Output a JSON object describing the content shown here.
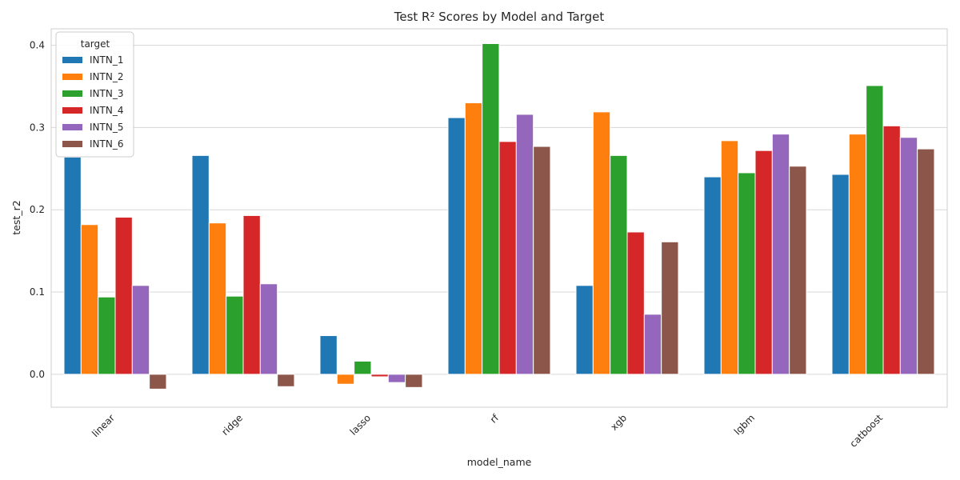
{
  "chart_data": {
    "type": "bar",
    "title": "Test R² Scores by Model and Target",
    "xlabel": "model_name",
    "ylabel": "test_r2",
    "categories": [
      "linear",
      "ridge",
      "lasso",
      "rf",
      "xgb",
      "lgbm",
      "catboost"
    ],
    "ylim": [
      -0.04,
      0.42
    ],
    "yticks": [
      0.0,
      0.1,
      0.2,
      0.3,
      0.4
    ],
    "ytick_labels": [
      "0.0",
      "0.1",
      "0.2",
      "0.3",
      "0.4"
    ],
    "grid": "horizontal",
    "legend": {
      "title": "target",
      "placement": "top-left"
    },
    "series": [
      {
        "name": "INTN_1",
        "color": "#1f77b4",
        "values": [
          0.264,
          0.266,
          0.047,
          0.312,
          0.108,
          0.24,
          0.243
        ]
      },
      {
        "name": "INTN_2",
        "color": "#ff7f0e",
        "values": [
          0.182,
          0.184,
          -0.012,
          0.33,
          0.319,
          0.284,
          0.292
        ]
      },
      {
        "name": "INTN_3",
        "color": "#2ca02c",
        "values": [
          0.094,
          0.095,
          0.016,
          0.402,
          0.266,
          0.245,
          0.351
        ]
      },
      {
        "name": "INTN_4",
        "color": "#d62728",
        "values": [
          0.191,
          0.193,
          -0.003,
          0.283,
          0.173,
          0.272,
          0.302
        ]
      },
      {
        "name": "INTN_5",
        "color": "#9467bd",
        "values": [
          0.108,
          0.11,
          -0.01,
          0.316,
          0.073,
          0.292,
          0.288
        ]
      },
      {
        "name": "INTN_6",
        "color": "#8c564b",
        "values": [
          -0.018,
          -0.015,
          -0.016,
          0.277,
          0.161,
          0.253,
          0.274
        ]
      }
    ]
  }
}
